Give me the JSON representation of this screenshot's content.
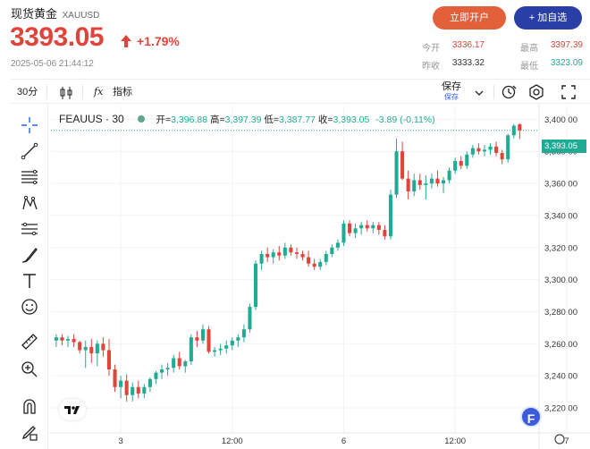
{
  "header": {
    "name": "现货黄金",
    "symbol": "XAUUSD",
    "price": "3393.05",
    "change_pct": "+1.79%",
    "timestamp": "2025-05-06 21:44:12",
    "open_account_label": "立即开户",
    "add_watchlist_label": "+ 加自选",
    "stats": {
      "open_label": "今开",
      "open_value": "3336.17",
      "high_label": "最高",
      "high_value": "3397.39",
      "prev_close_label": "昨收",
      "prev_close_value": "3333.32",
      "low_label": "最低",
      "low_value": "3323.09"
    },
    "colors": {
      "up": "#e0443a",
      "down": "#22ab94",
      "accent": "#2a3fa6",
      "orange": "#e2603a"
    }
  },
  "toolbar": {
    "interval": "30分",
    "indicators_label": "指标",
    "save_label": "保存",
    "save_sub": "保存",
    "icons": [
      "candles-icon",
      "fx-icon",
      "chevron-down-icon",
      "alert-clock-icon",
      "settings-icon",
      "fullscreen-icon"
    ]
  },
  "tools": [
    "crosshair-icon",
    "trendline-icon",
    "fib-icon",
    "pattern-icon",
    "measure-lines-icon",
    "brush-icon",
    "text-icon",
    "emoji-icon",
    "ruler-icon",
    "zoom-in-icon",
    "magnet-icon",
    "lock-pencil-icon"
  ],
  "legend": {
    "title": "FEAUUS · 30",
    "open_label": "开",
    "open": "3,396.88",
    "high_label": "高",
    "high": "3,397.39",
    "low_label": "低",
    "low": "3,387.77",
    "close_label": "收",
    "close": "3,393.05",
    "change": "-3.89 (-0.11%)"
  },
  "last_price_tag": "3,393.05",
  "badge_letter": "F",
  "chart_data": {
    "type": "candlestick",
    "y_ticks": [
      "3,400.00",
      "3,380.00",
      "3,360.00",
      "3,340.00",
      "3,320.00",
      "3,300.00",
      "3,280.00",
      "3,260.00",
      "3,240.00",
      "3,220.00"
    ],
    "y_tick_values": [
      3400,
      3380,
      3360,
      3340,
      3320,
      3300,
      3280,
      3260,
      3240,
      3220
    ],
    "x_ticks": [
      "3",
      "12:00",
      "6",
      "12:00",
      "7"
    ],
    "x_tick_index": [
      11,
      30,
      49,
      68,
      87
    ],
    "ylim": [
      3210,
      3408
    ],
    "last_price": 3393.05,
    "candles": [
      [
        3262,
        3266,
        3258,
        3264
      ],
      [
        3264,
        3266,
        3259,
        3262
      ],
      [
        3262,
        3265,
        3258,
        3263
      ],
      [
        3263,
        3266,
        3258,
        3261
      ],
      [
        3261,
        3262,
        3254,
        3256
      ],
      [
        3256,
        3262,
        3245,
        3258
      ],
      [
        3258,
        3263,
        3248,
        3254
      ],
      [
        3254,
        3262,
        3246,
        3260
      ],
      [
        3260,
        3264,
        3252,
        3256
      ],
      [
        3256,
        3263,
        3240,
        3244
      ],
      [
        3244,
        3247,
        3230,
        3233
      ],
      [
        3233,
        3240,
        3226,
        3237
      ],
      [
        3237,
        3241,
        3224,
        3228
      ],
      [
        3228,
        3236,
        3224,
        3233
      ],
      [
        3233,
        3237,
        3226,
        3229
      ],
      [
        3229,
        3235,
        3226,
        3233
      ],
      [
        3233,
        3239,
        3230,
        3238
      ],
      [
        3238,
        3243,
        3235,
        3242
      ],
      [
        3242,
        3247,
        3238,
        3244
      ],
      [
        3244,
        3248,
        3240,
        3245
      ],
      [
        3245,
        3253,
        3242,
        3251
      ],
      [
        3251,
        3255,
        3244,
        3246
      ],
      [
        3246,
        3250,
        3242,
        3249
      ],
      [
        3249,
        3266,
        3247,
        3264
      ],
      [
        3264,
        3268,
        3258,
        3262
      ],
      [
        3262,
        3272,
        3260,
        3269
      ],
      [
        3269,
        3271,
        3254,
        3255
      ],
      [
        3255,
        3258,
        3252,
        3256
      ],
      [
        3256,
        3260,
        3253,
        3257
      ],
      [
        3257,
        3262,
        3254,
        3259
      ],
      [
        3259,
        3264,
        3256,
        3262
      ],
      [
        3262,
        3266,
        3258,
        3264
      ],
      [
        3264,
        3272,
        3261,
        3269
      ],
      [
        3269,
        3285,
        3267,
        3283
      ],
      [
        3283,
        3312,
        3281,
        3310
      ],
      [
        3310,
        3318,
        3306,
        3316
      ],
      [
        3316,
        3320,
        3311,
        3314
      ],
      [
        3314,
        3319,
        3310,
        3317
      ],
      [
        3317,
        3321,
        3312,
        3315
      ],
      [
        3315,
        3323,
        3313,
        3320
      ],
      [
        3320,
        3322,
        3315,
        3317
      ],
      [
        3317,
        3320,
        3313,
        3316
      ],
      [
        3316,
        3318,
        3312,
        3314
      ],
      [
        3314,
        3318,
        3308,
        3310
      ],
      [
        3310,
        3313,
        3306,
        3308
      ],
      [
        3308,
        3313,
        3306,
        3311
      ],
      [
        3311,
        3318,
        3309,
        3316
      ],
      [
        3316,
        3322,
        3314,
        3320
      ],
      [
        3320,
        3325,
        3318,
        3323
      ],
      [
        3323,
        3337,
        3321,
        3335
      ],
      [
        3335,
        3337,
        3327,
        3329
      ],
      [
        3329,
        3335,
        3326,
        3332
      ],
      [
        3332,
        3336,
        3328,
        3334
      ],
      [
        3334,
        3337,
        3330,
        3332
      ],
      [
        3332,
        3336,
        3329,
        3334
      ],
      [
        3334,
        3336,
        3328,
        3331
      ],
      [
        3331,
        3334,
        3325,
        3327
      ],
      [
        3327,
        3356,
        3325,
        3353
      ],
      [
        3353,
        3388,
        3351,
        3380
      ],
      [
        3380,
        3386,
        3362,
        3363
      ],
      [
        3363,
        3368,
        3350,
        3355
      ],
      [
        3355,
        3366,
        3352,
        3362
      ],
      [
        3362,
        3366,
        3356,
        3359
      ],
      [
        3359,
        3365,
        3350,
        3360
      ],
      [
        3360,
        3366,
        3357,
        3363
      ],
      [
        3363,
        3368,
        3358,
        3360
      ],
      [
        3360,
        3364,
        3354,
        3362
      ],
      [
        3362,
        3370,
        3360,
        3368
      ],
      [
        3368,
        3376,
        3366,
        3374
      ],
      [
        3374,
        3377,
        3369,
        3371
      ],
      [
        3371,
        3380,
        3369,
        3378
      ],
      [
        3378,
        3384,
        3376,
        3382
      ],
      [
        3382,
        3385,
        3378,
        3380
      ],
      [
        3380,
        3384,
        3377,
        3381
      ],
      [
        3381,
        3385,
        3378,
        3383
      ],
      [
        3383,
        3386,
        3377,
        3379
      ],
      [
        3379,
        3381,
        3372,
        3375
      ],
      [
        3375,
        3391,
        3373,
        3390
      ],
      [
        3390,
        3397,
        3388,
        3396
      ],
      [
        3396.88,
        3397.39,
        3387.77,
        3393.05
      ]
    ]
  }
}
